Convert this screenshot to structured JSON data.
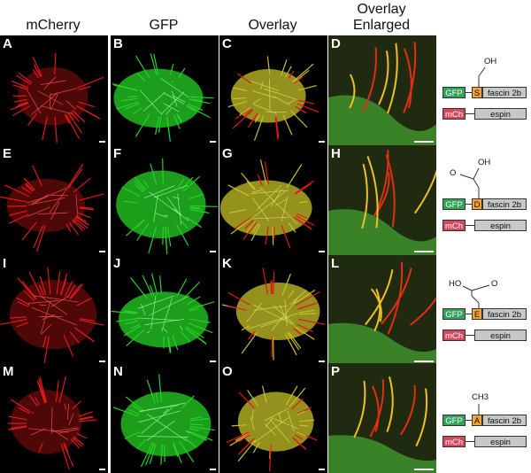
{
  "columns": {
    "mcherry": "mCherry",
    "gfp": "GFP",
    "overlay": "Overlay",
    "enlarged_line1": "Overlay",
    "enlarged_line2": "Enlarged"
  },
  "panel_letters": [
    "A",
    "B",
    "C",
    "D",
    "E",
    "F",
    "G",
    "H",
    "I",
    "J",
    "K",
    "L",
    "M",
    "N",
    "O",
    "P"
  ],
  "diagrams": [
    {
      "residue": "S",
      "chem_top": "OH",
      "chem_side": "",
      "gfp": "GFP",
      "fascin": "fascin 2b",
      "mch": "mCh",
      "espin": "espin"
    },
    {
      "residue": "D",
      "chem_top": "OH",
      "chem_side": "O",
      "gfp": "GFP",
      "fascin": "fascin 2b",
      "mch": "mCh",
      "espin": "espin"
    },
    {
      "residue": "E",
      "chem_top": "O",
      "chem_side": "HO",
      "gfp": "GFP",
      "fascin": "fascin 2b",
      "mch": "mCh",
      "espin": "espin"
    },
    {
      "residue": "A",
      "chem_top": "CH3",
      "chem_side": "",
      "gfp": "GFP",
      "fascin": "fascin 2b",
      "mch": "mCh",
      "espin": "espin"
    }
  ],
  "colors": {
    "mcherry": "#e01818",
    "gfp": "#26d226",
    "overlay": "#c7c228",
    "gfp_box": "#33a35a",
    "mch_box": "#d8465a",
    "residue_box": "#f2a33a",
    "fascin_box": "#c8c8c8"
  }
}
